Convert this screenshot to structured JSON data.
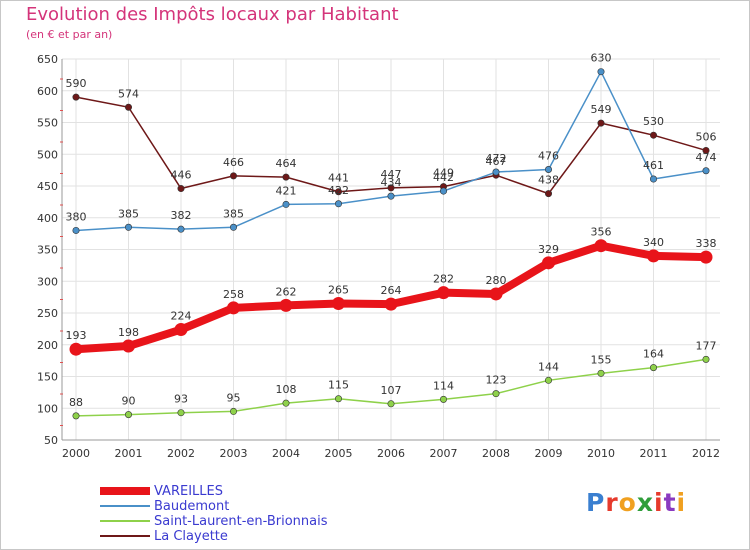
{
  "header": {
    "title": "Evolution des Impôts locaux par Habitant",
    "subtitle": "(en € et par an)"
  },
  "logo": {
    "text": "Proxiti",
    "letter_colors": [
      "#3a7fd0",
      "#e63a2c",
      "#f0a020",
      "#2f9e3a",
      "#e63a2c",
      "#8a3ac0",
      "#f0a020"
    ]
  },
  "chart_data": {
    "type": "line",
    "x": [
      2000,
      2001,
      2002,
      2003,
      2004,
      2005,
      2006,
      2007,
      2008,
      2009,
      2010,
      2011,
      2012
    ],
    "ylim": [
      50,
      650
    ],
    "yticks": [
      50,
      100,
      150,
      200,
      250,
      300,
      350,
      400,
      450,
      500,
      550,
      600,
      650
    ],
    "grid": true,
    "series": [
      {
        "name": "VAREILLES",
        "color": "#e8141a",
        "values": [
          193,
          198,
          224,
          258,
          262,
          265,
          264,
          282,
          280,
          329,
          356,
          340,
          338
        ]
      },
      {
        "name": "Baudemont",
        "color": "#4a90c8",
        "values": [
          380,
          385,
          382,
          385,
          421,
          422,
          434,
          442,
          472,
          476,
          630,
          461,
          474
        ]
      },
      {
        "name": "Saint-Laurent-en-Brionnais",
        "color": "#8ed14a",
        "values": [
          88,
          90,
          93,
          95,
          108,
          115,
          107,
          114,
          123,
          144,
          155,
          164,
          177
        ]
      },
      {
        "name": "La Clayette",
        "color": "#6e1818",
        "values": [
          590,
          574,
          446,
          466,
          464,
          441,
          447,
          449,
          467,
          438,
          549,
          530,
          506
        ]
      }
    ]
  },
  "legend": {
    "items": [
      {
        "label": "VAREILLES",
        "color": "#e8141a",
        "label_color": "#3a3ad0"
      },
      {
        "label": "Baudemont",
        "color": "#4a90c8",
        "label_color": "#3a3ad0"
      },
      {
        "label": "Saint-Laurent-en-Brionnais",
        "color": "#8ed14a",
        "label_color": "#3a3ad0"
      },
      {
        "label": "La Clayette",
        "color": "#6e1818",
        "label_color": "#3a3ad0"
      }
    ]
  }
}
